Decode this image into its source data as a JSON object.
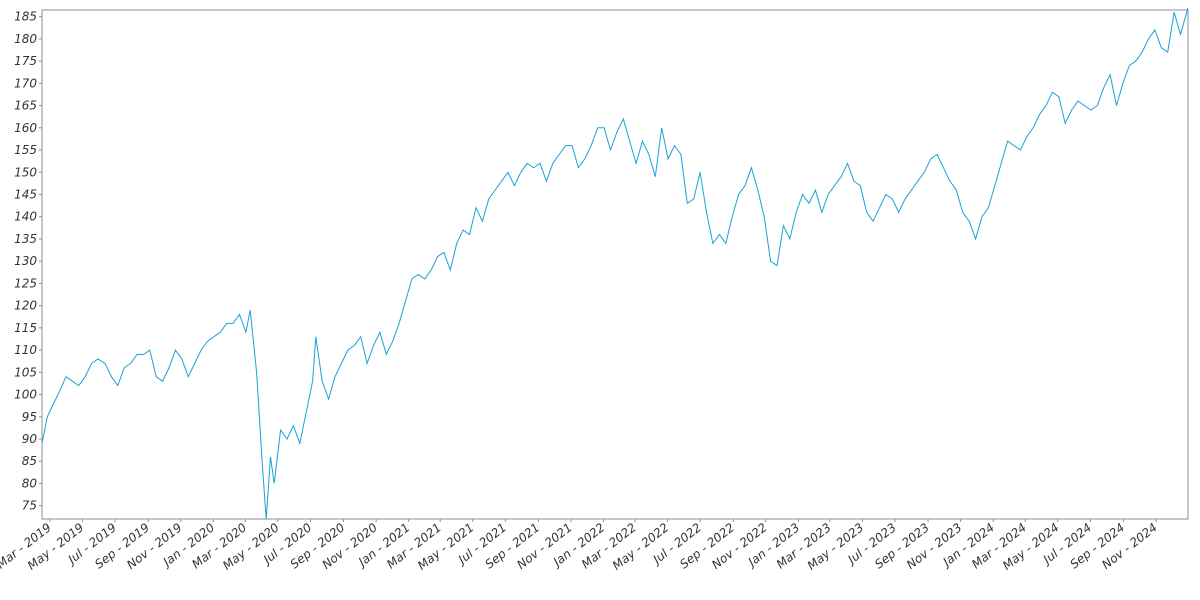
{
  "chart_data": {
    "type": "line",
    "title": "",
    "xlabel": "",
    "ylabel": "",
    "ylim": [
      72,
      186.5
    ],
    "xlim": [
      "2019-02-14",
      "2024-12-31"
    ],
    "grid": false,
    "legend": "none",
    "colors": {
      "series": "#1aa3d6",
      "frame": "#8c8c8c",
      "text": "#333333"
    },
    "y_ticks": [
      75,
      80,
      85,
      90,
      95,
      100,
      105,
      110,
      115,
      120,
      125,
      130,
      135,
      140,
      145,
      150,
      155,
      160,
      165,
      170,
      175,
      180,
      185
    ],
    "x_ticks": [
      {
        "label": "Mar - 2019",
        "date": "2019-03-01"
      },
      {
        "label": "May - 2019",
        "date": "2019-05-01"
      },
      {
        "label": "Jul - 2019",
        "date": "2019-07-01"
      },
      {
        "label": "Sep - 2019",
        "date": "2019-09-01"
      },
      {
        "label": "Nov - 2019",
        "date": "2019-11-01"
      },
      {
        "label": "Jan - 2020",
        "date": "2020-01-01"
      },
      {
        "label": "Mar - 2020",
        "date": "2020-03-01"
      },
      {
        "label": "May - 2020",
        "date": "2020-05-01"
      },
      {
        "label": "Jul - 2020",
        "date": "2020-07-01"
      },
      {
        "label": "Sep - 2020",
        "date": "2020-09-01"
      },
      {
        "label": "Nov - 2020",
        "date": "2020-11-01"
      },
      {
        "label": "Jan - 2021",
        "date": "2021-01-01"
      },
      {
        "label": "Mar - 2021",
        "date": "2021-03-01"
      },
      {
        "label": "May - 2021",
        "date": "2021-05-01"
      },
      {
        "label": "Jul - 2021",
        "date": "2021-07-01"
      },
      {
        "label": "Sep - 2021",
        "date": "2021-09-01"
      },
      {
        "label": "Nov - 2021",
        "date": "2021-11-01"
      },
      {
        "label": "Jan - 2022",
        "date": "2022-01-01"
      },
      {
        "label": "Mar - 2022",
        "date": "2022-03-01"
      },
      {
        "label": "May - 2022",
        "date": "2022-05-01"
      },
      {
        "label": "Jul - 2022",
        "date": "2022-07-01"
      },
      {
        "label": "Sep - 2022",
        "date": "2022-09-01"
      },
      {
        "label": "Nov - 2022",
        "date": "2022-11-01"
      },
      {
        "label": "Jan - 2023",
        "date": "2023-01-01"
      },
      {
        "label": "Mar - 2023",
        "date": "2023-03-01"
      },
      {
        "label": "May - 2023",
        "date": "2023-05-01"
      },
      {
        "label": "Jul - 2023",
        "date": "2023-07-01"
      },
      {
        "label": "Sep - 2023",
        "date": "2023-09-01"
      },
      {
        "label": "Nov - 2023",
        "date": "2023-11-01"
      },
      {
        "label": "Jan - 2024",
        "date": "2024-01-01"
      },
      {
        "label": "Mar - 2024",
        "date": "2024-03-01"
      },
      {
        "label": "May - 2024",
        "date": "2024-05-01"
      },
      {
        "label": "Jul - 2024",
        "date": "2024-07-01"
      },
      {
        "label": "Sep - 2024",
        "date": "2024-09-01"
      },
      {
        "label": "Nov - 2024",
        "date": "2024-11-01"
      }
    ],
    "series": [
      {
        "points": [
          [
            "2019-02-14",
            89
          ],
          [
            "2019-02-24",
            95
          ],
          [
            "2019-03-08",
            98
          ],
          [
            "2019-03-20",
            101
          ],
          [
            "2019-03-31",
            104
          ],
          [
            "2019-04-12",
            103
          ],
          [
            "2019-04-24",
            102
          ],
          [
            "2019-05-06",
            104
          ],
          [
            "2019-05-18",
            107
          ],
          [
            "2019-05-30",
            108
          ],
          [
            "2019-06-12",
            107
          ],
          [
            "2019-06-24",
            104
          ],
          [
            "2019-07-06",
            102
          ],
          [
            "2019-07-18",
            106
          ],
          [
            "2019-07-30",
            107
          ],
          [
            "2019-08-11",
            109
          ],
          [
            "2019-08-23",
            109
          ],
          [
            "2019-09-04",
            110
          ],
          [
            "2019-09-16",
            104
          ],
          [
            "2019-09-28",
            103
          ],
          [
            "2019-10-10",
            106
          ],
          [
            "2019-10-22",
            110
          ],
          [
            "2019-11-03",
            108
          ],
          [
            "2019-11-15",
            104
          ],
          [
            "2019-11-27",
            107
          ],
          [
            "2019-12-09",
            110
          ],
          [
            "2019-12-21",
            112
          ],
          [
            "2020-01-02",
            113
          ],
          [
            "2020-01-14",
            114
          ],
          [
            "2020-01-26",
            116
          ],
          [
            "2020-02-07",
            116
          ],
          [
            "2020-02-19",
            118
          ],
          [
            "2020-03-02",
            114
          ],
          [
            "2020-03-10",
            119
          ],
          [
            "2020-03-22",
            105
          ],
          [
            "2020-04-02",
            84
          ],
          [
            "2020-04-09",
            72
          ],
          [
            "2020-04-17",
            86
          ],
          [
            "2020-04-24",
            80
          ],
          [
            "2020-05-06",
            92
          ],
          [
            "2020-05-18",
            90
          ],
          [
            "2020-05-30",
            93
          ],
          [
            "2020-06-11",
            89
          ],
          [
            "2020-06-23",
            96
          ],
          [
            "2020-07-05",
            103
          ],
          [
            "2020-07-11",
            113
          ],
          [
            "2020-07-23",
            103
          ],
          [
            "2020-08-04",
            99
          ],
          [
            "2020-08-16",
            104
          ],
          [
            "2020-08-28",
            107
          ],
          [
            "2020-09-09",
            110
          ],
          [
            "2020-09-21",
            111
          ],
          [
            "2020-10-03",
            113
          ],
          [
            "2020-10-15",
            107
          ],
          [
            "2020-10-27",
            111
          ],
          [
            "2020-11-08",
            114
          ],
          [
            "2020-11-20",
            109
          ],
          [
            "2020-12-02",
            112
          ],
          [
            "2020-12-14",
            116
          ],
          [
            "2020-12-26",
            121
          ],
          [
            "2021-01-07",
            126
          ],
          [
            "2021-01-19",
            127
          ],
          [
            "2021-01-31",
            126
          ],
          [
            "2021-02-12",
            128
          ],
          [
            "2021-02-24",
            131
          ],
          [
            "2021-03-08",
            132
          ],
          [
            "2021-03-20",
            128
          ],
          [
            "2021-04-01",
            134
          ],
          [
            "2021-04-13",
            137
          ],
          [
            "2021-04-25",
            136
          ],
          [
            "2021-05-07",
            142
          ],
          [
            "2021-05-19",
            139
          ],
          [
            "2021-05-31",
            144
          ],
          [
            "2021-06-12",
            146
          ],
          [
            "2021-06-24",
            148
          ],
          [
            "2021-07-06",
            150
          ],
          [
            "2021-07-18",
            147
          ],
          [
            "2021-07-30",
            150
          ],
          [
            "2021-08-11",
            152
          ],
          [
            "2021-08-23",
            151
          ],
          [
            "2021-09-04",
            152
          ],
          [
            "2021-09-16",
            148
          ],
          [
            "2021-09-28",
            152
          ],
          [
            "2021-10-10",
            154
          ],
          [
            "2021-10-22",
            156
          ],
          [
            "2021-11-03",
            156
          ],
          [
            "2021-11-15",
            151
          ],
          [
            "2021-11-27",
            153
          ],
          [
            "2021-12-09",
            156
          ],
          [
            "2021-12-21",
            160
          ],
          [
            "2022-01-02",
            160
          ],
          [
            "2022-01-14",
            155
          ],
          [
            "2022-01-26",
            159
          ],
          [
            "2022-02-07",
            162
          ],
          [
            "2022-02-19",
            157
          ],
          [
            "2022-03-03",
            152
          ],
          [
            "2022-03-15",
            157
          ],
          [
            "2022-03-27",
            154
          ],
          [
            "2022-04-08",
            149
          ],
          [
            "2022-04-20",
            160
          ],
          [
            "2022-05-02",
            153
          ],
          [
            "2022-05-14",
            156
          ],
          [
            "2022-05-26",
            154
          ],
          [
            "2022-06-07",
            143
          ],
          [
            "2022-06-19",
            144
          ],
          [
            "2022-07-01",
            150
          ],
          [
            "2022-07-13",
            141
          ],
          [
            "2022-07-25",
            134
          ],
          [
            "2022-08-06",
            136
          ],
          [
            "2022-08-18",
            134
          ],
          [
            "2022-08-30",
            140
          ],
          [
            "2022-09-11",
            145
          ],
          [
            "2022-09-23",
            147
          ],
          [
            "2022-10-05",
            151
          ],
          [
            "2022-10-17",
            146
          ],
          [
            "2022-10-29",
            140
          ],
          [
            "2022-11-10",
            130
          ],
          [
            "2022-11-22",
            129
          ],
          [
            "2022-12-04",
            138
          ],
          [
            "2022-12-16",
            135
          ],
          [
            "2022-12-28",
            141
          ],
          [
            "2023-01-09",
            145
          ],
          [
            "2023-01-21",
            143
          ],
          [
            "2023-02-02",
            146
          ],
          [
            "2023-02-14",
            141
          ],
          [
            "2023-02-26",
            145
          ],
          [
            "2023-03-10",
            147
          ],
          [
            "2023-03-22",
            149
          ],
          [
            "2023-04-03",
            152
          ],
          [
            "2023-04-15",
            148
          ],
          [
            "2023-04-27",
            147
          ],
          [
            "2023-05-09",
            141
          ],
          [
            "2023-05-21",
            139
          ],
          [
            "2023-06-02",
            142
          ],
          [
            "2023-06-14",
            145
          ],
          [
            "2023-06-26",
            144
          ],
          [
            "2023-07-08",
            141
          ],
          [
            "2023-07-20",
            144
          ],
          [
            "2023-08-01",
            146
          ],
          [
            "2023-08-13",
            148
          ],
          [
            "2023-08-25",
            150
          ],
          [
            "2023-09-06",
            153
          ],
          [
            "2023-09-18",
            154
          ],
          [
            "2023-09-30",
            151
          ],
          [
            "2023-10-12",
            148
          ],
          [
            "2023-10-24",
            146
          ],
          [
            "2023-11-05",
            141
          ],
          [
            "2023-11-17",
            139
          ],
          [
            "2023-11-29",
            135
          ],
          [
            "2023-12-11",
            140
          ],
          [
            "2023-12-23",
            142
          ],
          [
            "2024-01-04",
            147
          ],
          [
            "2024-01-16",
            152
          ],
          [
            "2024-01-28",
            157
          ],
          [
            "2024-02-09",
            156
          ],
          [
            "2024-02-21",
            155
          ],
          [
            "2024-03-04",
            158
          ],
          [
            "2024-03-16",
            160
          ],
          [
            "2024-03-28",
            163
          ],
          [
            "2024-04-09",
            165
          ],
          [
            "2024-04-21",
            168
          ],
          [
            "2024-05-03",
            167
          ],
          [
            "2024-05-15",
            161
          ],
          [
            "2024-05-27",
            164
          ],
          [
            "2024-06-08",
            166
          ],
          [
            "2024-06-20",
            165
          ],
          [
            "2024-07-02",
            164
          ],
          [
            "2024-07-14",
            165
          ],
          [
            "2024-07-26",
            169
          ],
          [
            "2024-08-07",
            172
          ],
          [
            "2024-08-19",
            165
          ],
          [
            "2024-08-31",
            170
          ],
          [
            "2024-09-12",
            174
          ],
          [
            "2024-09-24",
            175
          ],
          [
            "2024-10-06",
            177
          ],
          [
            "2024-10-18",
            180
          ],
          [
            "2024-10-30",
            182
          ],
          [
            "2024-11-11",
            178
          ],
          [
            "2024-11-23",
            177
          ],
          [
            "2024-12-05",
            186
          ],
          [
            "2024-12-17",
            181
          ],
          [
            "2024-12-31",
            187
          ]
        ]
      }
    ]
  }
}
